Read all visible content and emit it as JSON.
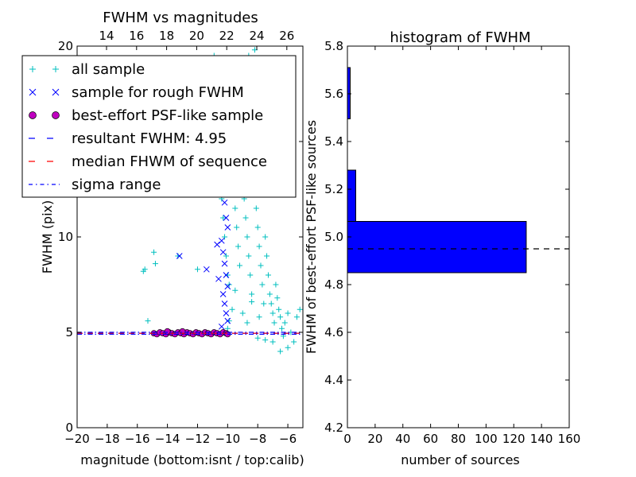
{
  "chart_data": [
    {
      "type": "scatter",
      "title": "FWHM vs magnitudes",
      "xlabel": "magnitude (bottom:isnt / top:calib)",
      "ylabel": "FWHM (pix)",
      "xlim": [
        -20,
        -5
      ],
      "ylim": [
        0,
        20
      ],
      "xticks": [
        -20,
        -18,
        -16,
        -14,
        -12,
        -10,
        -8,
        -6
      ],
      "xtick_labels": [
        "−20",
        "−18",
        "−16",
        "−14",
        "−12",
        "−10",
        "−8",
        "−6"
      ],
      "yticks": [
        0,
        5,
        10,
        15,
        20
      ],
      "ytick_labels": [
        "0",
        "5",
        "10",
        "15",
        "20"
      ],
      "top_axis": {
        "ticks_at_bottom_value": [
          -13,
          -11,
          -9,
          -7,
          -5,
          -3,
          -1
        ],
        "labels": [
          "14",
          "16",
          "18",
          "20",
          "22",
          "24",
          "26"
        ]
      },
      "legend": {
        "placement": "top-left",
        "entries": [
          {
            "label": "all sample",
            "marker": "+",
            "color": "#00bfbf"
          },
          {
            "label": "sample for rough FWHM",
            "marker": "x",
            "color": "#0000ff"
          },
          {
            "label": "best-effort PSF-like sample",
            "marker": "o",
            "color": "#bf00bf"
          },
          {
            "label": "resultant FWHM: 4.95",
            "marker": "dashed-line",
            "color": "#0000ff"
          },
          {
            "label": "median FHWM of sequence",
            "marker": "dashed-line",
            "color": "#ff0000"
          },
          {
            "label": "sigma range",
            "marker": "dashdot-line",
            "color": "#0000ff"
          }
        ]
      },
      "series": [
        {
          "name": "all sample",
          "color": "#00bfbf",
          "points": [
            [
              -15.6,
              8.2
            ],
            [
              -15.5,
              8.3
            ],
            [
              -14.9,
              9.2
            ],
            [
              -14.8,
              8.6
            ],
            [
              -15.3,
              5.6
            ],
            [
              -13.3,
              9.0
            ],
            [
              -12.0,
              8.3
            ],
            [
              -10.9,
              19.5
            ],
            [
              -10.8,
              17.0
            ],
            [
              -10.6,
              15.0
            ],
            [
              -10.5,
              13.5
            ],
            [
              -10.4,
              12.0
            ],
            [
              -10.3,
              11.0
            ],
            [
              -10.2,
              10.0
            ],
            [
              -10.1,
              9.0
            ],
            [
              -10.0,
              8.0
            ],
            [
              -9.9,
              7.5
            ],
            [
              -9.8,
              14.0
            ],
            [
              -9.6,
              12.5
            ],
            [
              -9.5,
              11.5
            ],
            [
              -9.4,
              10.5
            ],
            [
              -9.3,
              9.5
            ],
            [
              -9.2,
              8.5
            ],
            [
              -9.1,
              16.0
            ],
            [
              -9.0,
              13.0
            ],
            [
              -8.9,
              12.0
            ],
            [
              -8.8,
              11.0
            ],
            [
              -8.7,
              10.0
            ],
            [
              -8.6,
              9.0
            ],
            [
              -8.5,
              8.0
            ],
            [
              -8.4,
              7.0
            ],
            [
              -8.3,
              14.5
            ],
            [
              -8.2,
              12.5
            ],
            [
              -8.1,
              11.5
            ],
            [
              -8.0,
              10.5
            ],
            [
              -7.9,
              9.5
            ],
            [
              -7.8,
              8.5
            ],
            [
              -7.7,
              7.5
            ],
            [
              -7.6,
              6.5
            ],
            [
              -7.5,
              10.0
            ],
            [
              -7.4,
              9.0
            ],
            [
              -7.3,
              8.0
            ],
            [
              -7.2,
              7.0
            ],
            [
              -7.1,
              6.5
            ],
            [
              -7.0,
              6.0
            ],
            [
              -6.9,
              5.5
            ],
            [
              -6.8,
              7.5
            ],
            [
              -6.7,
              6.8
            ],
            [
              -6.6,
              6.2
            ],
            [
              -6.5,
              5.8
            ],
            [
              -6.4,
              5.2
            ],
            [
              -6.3,
              4.8
            ],
            [
              -6.2,
              5.5
            ],
            [
              -6.0,
              6.0
            ],
            [
              -5.8,
              5.0
            ],
            [
              -5.6,
              4.5
            ],
            [
              -5.4,
              5.8
            ],
            [
              -5.2,
              6.2
            ],
            [
              -7.0,
              4.5
            ],
            [
              -7.5,
              4.6
            ],
            [
              -8.0,
              4.7
            ],
            [
              -6.5,
              4.0
            ],
            [
              -6.0,
              4.2
            ],
            [
              -8.2,
              19.8
            ],
            [
              -8.6,
              19.5
            ],
            [
              -9.4,
              18.2
            ],
            [
              -9.8,
              17.6
            ],
            [
              -8.9,
              17.0
            ],
            [
              -7.7,
              16.2
            ],
            [
              -7.3,
              15.5
            ],
            [
              -8.1,
              15.8
            ],
            [
              -9.5,
              7.2
            ],
            [
              -9.7,
              6.2
            ],
            [
              -9.9,
              5.6
            ],
            [
              -10.0,
              5.2
            ],
            [
              -9.0,
              6.0
            ],
            [
              -8.7,
              5.5
            ],
            [
              -8.4,
              6.6
            ],
            [
              -7.9,
              5.8
            ]
          ]
        },
        {
          "name": "sample for rough FWHM",
          "color": "#0000ff",
          "points": [
            [
              -13.2,
              9.0
            ],
            [
              -11.4,
              8.3
            ],
            [
              -10.8,
              15.9
            ],
            [
              -10.7,
              15.6
            ],
            [
              -10.6,
              15.2
            ],
            [
              -10.9,
              15.3
            ],
            [
              -10.5,
              14.8
            ],
            [
              -10.4,
              13.5
            ],
            [
              -10.3,
              12.5
            ],
            [
              -10.2,
              11.8
            ],
            [
              -10.1,
              11.0
            ],
            [
              -10.0,
              10.5
            ],
            [
              -10.4,
              9.8
            ],
            [
              -10.3,
              9.2
            ],
            [
              -10.2,
              8.6
            ],
            [
              -10.1,
              8.0
            ],
            [
              -10.0,
              7.4
            ],
            [
              -10.3,
              7.0
            ],
            [
              -10.2,
              6.5
            ],
            [
              -10.1,
              6.0
            ],
            [
              -10.0,
              5.6
            ],
            [
              -10.4,
              5.3
            ],
            [
              -10.6,
              7.8
            ],
            [
              -10.7,
              9.6
            ]
          ]
        },
        {
          "name": "best-effort PSF-like sample",
          "color": "#bf00bf",
          "points": [
            [
              -14.9,
              4.95
            ],
            [
              -14.7,
              4.9
            ],
            [
              -14.5,
              5.0
            ],
            [
              -14.3,
              4.95
            ],
            [
              -14.1,
              4.9
            ],
            [
              -13.9,
              5.0
            ],
            [
              -13.7,
              4.95
            ],
            [
              -13.5,
              4.9
            ],
            [
              -13.3,
              5.0
            ],
            [
              -13.1,
              4.95
            ],
            [
              -12.9,
              4.9
            ],
            [
              -12.7,
              5.0
            ],
            [
              -12.5,
              4.95
            ],
            [
              -12.3,
              4.9
            ],
            [
              -12.1,
              5.0
            ],
            [
              -11.9,
              4.95
            ],
            [
              -11.7,
              4.9
            ],
            [
              -11.5,
              5.0
            ],
            [
              -11.3,
              4.95
            ],
            [
              -11.1,
              4.9
            ],
            [
              -10.9,
              5.0
            ],
            [
              -10.7,
              4.95
            ],
            [
              -10.5,
              4.9
            ],
            [
              -10.3,
              5.0
            ],
            [
              -10.1,
              4.95
            ],
            [
              -10.0,
              4.9
            ],
            [
              -14.0,
              5.05
            ],
            [
              -13.0,
              5.05
            ]
          ]
        }
      ],
      "hlines": [
        {
          "name": "resultant FWHM",
          "y": 4.95,
          "style": "dashed",
          "color": "#0000ff"
        },
        {
          "name": "median FHWM of sequence",
          "y": 4.95,
          "style": "dashed",
          "color": "#ff0000"
        },
        {
          "name": "sigma range",
          "y": 4.9,
          "style": "dashdot",
          "color": "#0000ff"
        },
        {
          "name": "sigma range",
          "y": 5.0,
          "style": "dashdot",
          "color": "#0000ff"
        }
      ]
    },
    {
      "type": "bar",
      "orientation": "horizontal",
      "title": "histogram of FWHM",
      "xlabel": "number of sources",
      "ylabel": "FWHM of best-effort PSF-like sources",
      "xlim": [
        0,
        160
      ],
      "ylim": [
        4.2,
        5.8
      ],
      "xticks": [
        0,
        20,
        40,
        60,
        80,
        100,
        120,
        140,
        160
      ],
      "yticks": [
        4.2,
        4.4,
        4.6,
        4.8,
        5.0,
        5.2,
        5.4,
        5.6,
        5.8
      ],
      "ytick_labels": [
        "4.2",
        "4.4",
        "4.6",
        "4.8",
        "5.0",
        "5.2",
        "5.4",
        "5.6",
        "5.8"
      ],
      "bins": [
        {
          "from": 4.85,
          "to": 5.065,
          "count": 129
        },
        {
          "from": 5.065,
          "to": 5.28,
          "count": 6
        },
        {
          "from": 5.28,
          "to": 5.495,
          "count": 0
        },
        {
          "from": 5.495,
          "to": 5.71,
          "count": 2
        }
      ],
      "bar_color": "#0000ff",
      "hline": {
        "y": 4.95,
        "style": "dashed",
        "color": "#000000"
      }
    }
  ]
}
